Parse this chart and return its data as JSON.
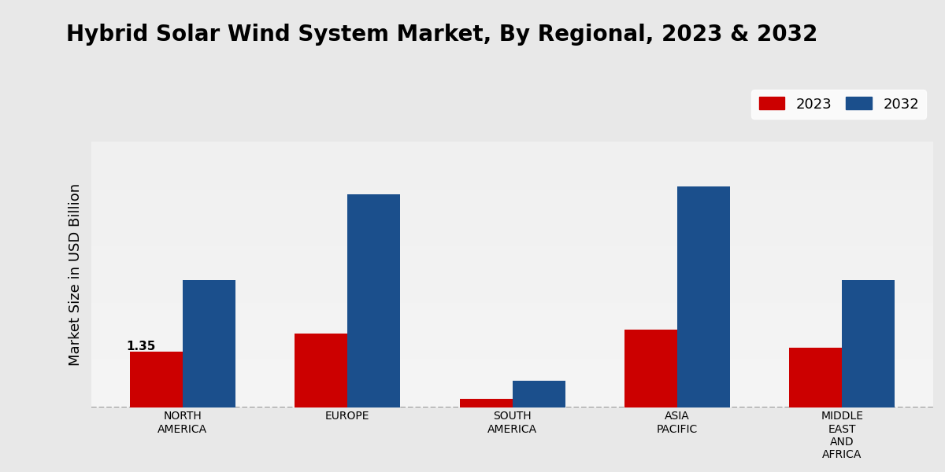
{
  "title": "Hybrid Solar Wind System Market, By Regional, 2023 & 2032",
  "ylabel": "Market Size in USD Billion",
  "categories": [
    "NORTH\nAMERICA",
    "EUROPE",
    "SOUTH\nAMERICA",
    "ASIA\nPACIFIC",
    "MIDDLE\nEAST\nAND\nAFRICA"
  ],
  "values_2023": [
    1.35,
    1.8,
    0.2,
    1.9,
    1.45
  ],
  "values_2032": [
    3.1,
    5.2,
    0.65,
    5.4,
    3.1
  ],
  "color_2023": "#cc0000",
  "color_2032": "#1b4f8c",
  "bar_width": 0.32,
  "annotation_label": "1.35",
  "background_top": "#d8d8d8",
  "background_bottom": "#f5f5f5",
  "title_fontsize": 20,
  "axis_label_fontsize": 13,
  "tick_fontsize": 10,
  "legend_fontsize": 13,
  "ylim": [
    0,
    6.5
  ],
  "legend_labels": [
    "2023",
    "2032"
  ]
}
